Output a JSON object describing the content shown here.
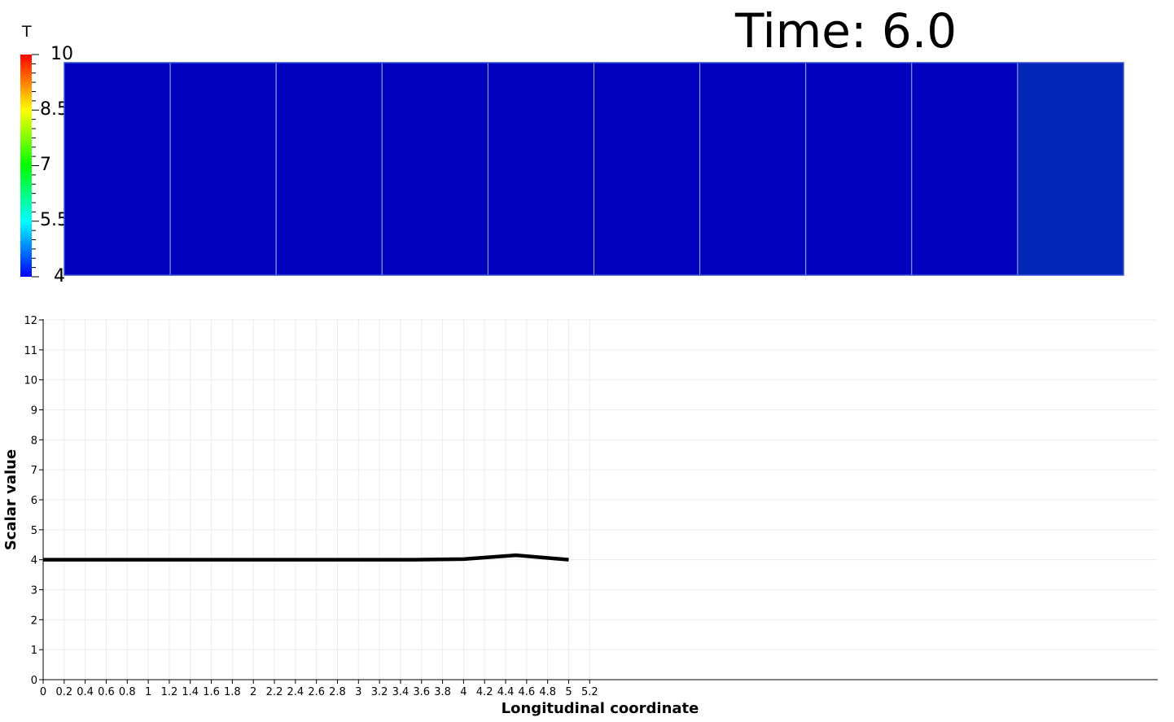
{
  "time_label": "Time: 6.0",
  "colorbar": {
    "title": "T",
    "min": 4,
    "max": 10,
    "tick_labels": [
      "10",
      "8.5",
      "7",
      "5.5",
      "4"
    ],
    "tick_values": [
      10,
      8.5,
      7,
      5.5,
      4
    ],
    "colormap": "rainbow (blue-cyan-green-yellow-red)"
  },
  "domain": {
    "cells": [
      {
        "color": "#0202be"
      },
      {
        "color": "#0202be"
      },
      {
        "color": "#0202be"
      },
      {
        "color": "#0202be"
      },
      {
        "color": "#0202be"
      },
      {
        "color": "#0202be"
      },
      {
        "color": "#0202be"
      },
      {
        "color": "#0202be"
      },
      {
        "color": "#0202be"
      },
      {
        "color": "#0226b8"
      }
    ]
  },
  "chart_data": {
    "type": "line",
    "xlabel": "Longitudinal coordinate",
    "ylabel": "Scalar value",
    "xlim": [
      0,
      5.3
    ],
    "ylim": [
      0,
      12
    ],
    "x_ticks": [
      0,
      0.2,
      0.4,
      0.6,
      0.8,
      1,
      1.2,
      1.4,
      1.6,
      1.8,
      2,
      2.2,
      2.4,
      2.6,
      2.8,
      3,
      3.2,
      3.4,
      3.6,
      3.8,
      4,
      4.2,
      4.4,
      4.6,
      4.8,
      5,
      5.2
    ],
    "x_tick_labels": [
      "0",
      "0.2",
      "0.4",
      "0.6",
      "0.8",
      "1",
      "1.2",
      "1.4",
      "1.6",
      "1.8",
      "2",
      "2.2",
      "2.4",
      "2.6",
      "2.8",
      "3",
      "3.2",
      "3.4",
      "3.6",
      "3.8",
      "4",
      "4.2",
      "4.4",
      "4.6",
      "4.8",
      "5",
      "5.2"
    ],
    "y_ticks": [
      0,
      1,
      2,
      3,
      4,
      5,
      6,
      7,
      8,
      9,
      10,
      11,
      12
    ],
    "y_tick_labels": [
      "0",
      "1",
      "2",
      "3",
      "4",
      "5",
      "6",
      "7",
      "8",
      "9",
      "10",
      "11",
      "12"
    ],
    "grid": true,
    "series": [
      {
        "color": "#000000",
        "x": [
          0,
          0.5,
          1,
          1.5,
          2,
          2.5,
          3,
          3.5,
          4,
          4.5,
          5
        ],
        "y": [
          4.0,
          4.0,
          4.0,
          4.0,
          4.0,
          4.0,
          4.0,
          4.0,
          4.02,
          4.15,
          4.0
        ]
      }
    ]
  }
}
